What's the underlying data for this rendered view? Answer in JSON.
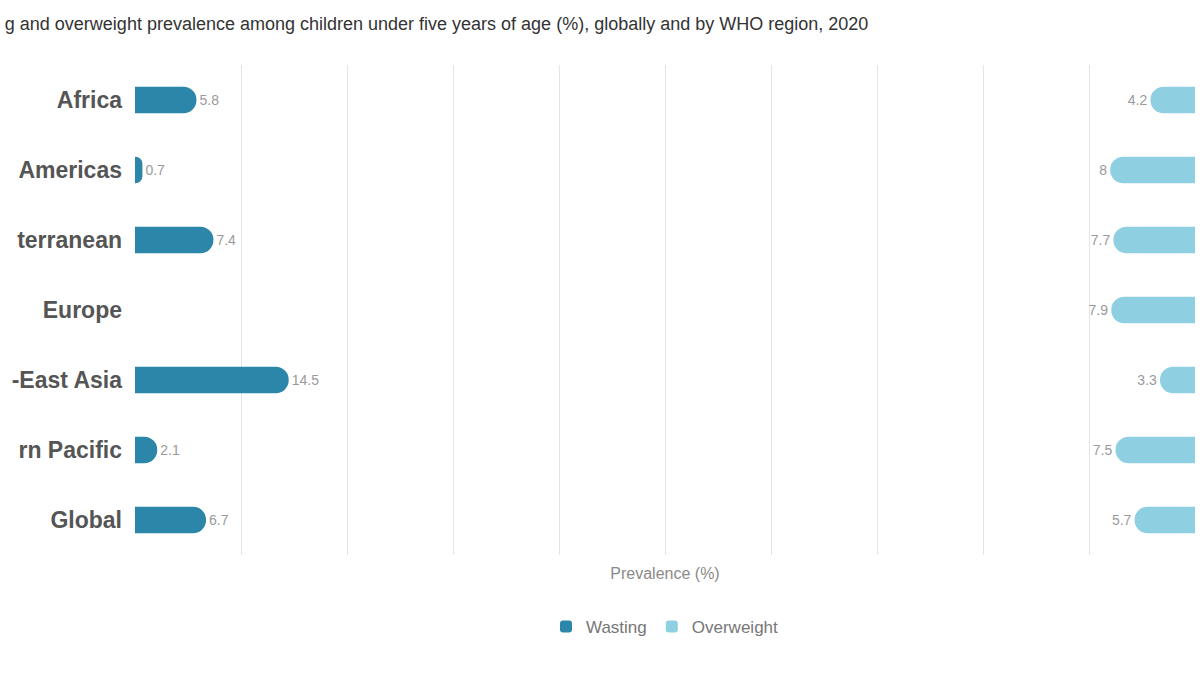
{
  "chart_data": {
    "type": "bar",
    "orientation": "horizontal",
    "title": "g and overweight prevalence among children under five years of age (%), globally and by WHO region, 2020",
    "x_label": "Prevalence (%)",
    "categories": [
      "Africa",
      "Americas",
      "terranean",
      "Europe",
      "-East Asia",
      "rn Pacific",
      "Global"
    ],
    "series": [
      {
        "name": "Wasting",
        "color": "#2b86a9",
        "values": [
          5.8,
          0.7,
          7.4,
          null,
          14.5,
          2.1,
          6.7
        ]
      },
      {
        "name": "Overweight",
        "color": "#8ecfe1",
        "axis": "x2",
        "values": [
          4.2,
          8,
          7.7,
          7.9,
          3.3,
          7.5,
          5.7
        ]
      }
    ],
    "xlim": [
      0,
      100
    ],
    "xticks": [
      0,
      10,
      20,
      30,
      40,
      50,
      60,
      70,
      80,
      90,
      100
    ],
    "x2lim": [
      100,
      0
    ],
    "grid": true,
    "data_labels": true,
    "tick_labels": "y",
    "legend": "bottom"
  }
}
